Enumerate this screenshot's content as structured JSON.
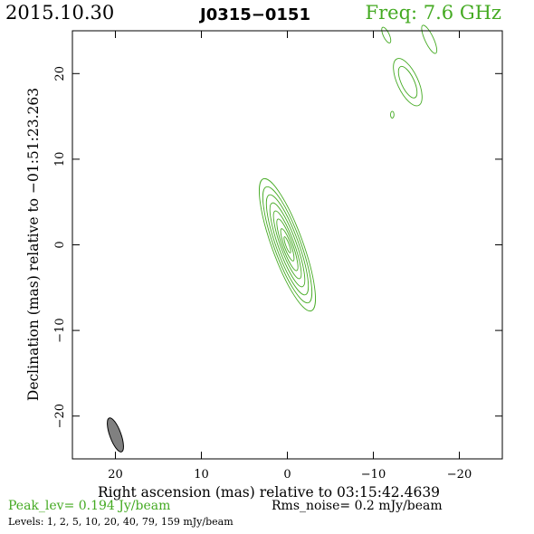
{
  "header": {
    "date": "2015.10.30",
    "source": "J0315−0151",
    "frequency": "Freq: 7.6 GHz"
  },
  "colors": {
    "contour": "#44aa22",
    "beam_fill": "#808080",
    "axes": "#000000"
  },
  "chart_data": {
    "type": "contour",
    "xlabel": "Right ascension (mas) relative to 03:15:42.4639",
    "ylabel": "Declination (mas) relative to −01:51:23.263",
    "xlim": [
      25,
      -25
    ],
    "ylim": [
      -25,
      25
    ],
    "x_ticks": [
      20,
      10,
      0,
      -10,
      -20
    ],
    "x_tick_labels": [
      "20",
      "10",
      "0",
      "−10",
      "−20"
    ],
    "y_ticks": [
      20,
      10,
      0,
      -10,
      -20
    ],
    "y_tick_labels": [
      "20",
      "10",
      "0",
      "−10",
      "−20"
    ],
    "contour_levels_mJy_per_beam": [
      1,
      2,
      5,
      10,
      20,
      40,
      79,
      159
    ],
    "peak_level": "Peak_lev=  0.194 Jy/beam",
    "rms_noise": "Rms_noise=  0.2 mJy/beam",
    "levels_text": "Levels:  1,  2,  5,  10,  20,  40,  79, 159 mJy/beam",
    "components": [
      {
        "name": "core",
        "x": 0.0,
        "y": 0.0,
        "semi_major": [
          8.2,
          7.2,
          6.2,
          5.2,
          4.2,
          3.2,
          2.0,
          1.0
        ],
        "semi_minor": [
          1.8,
          1.55,
          1.3,
          1.05,
          0.8,
          0.6,
          0.4,
          0.2
        ],
        "pa_deg": -20
      },
      {
        "name": "blob-a",
        "x": -14.0,
        "y": 19.0,
        "semi_major": [
          3.0,
          2.0
        ],
        "semi_minor": [
          1.2,
          0.75
        ],
        "pa_deg": -25
      },
      {
        "name": "blob-b",
        "x": -16.5,
        "y": 24.0,
        "semi_major": [
          1.8
        ],
        "semi_minor": [
          0.5
        ],
        "pa_deg": -25
      },
      {
        "name": "blob-c",
        "x": -11.5,
        "y": 24.5,
        "semi_major": [
          1.0
        ],
        "semi_minor": [
          0.35
        ],
        "pa_deg": -25
      },
      {
        "name": "blob-d",
        "x": -12.2,
        "y": 15.2,
        "semi_major": [
          0.4
        ],
        "semi_minor": [
          0.2
        ],
        "pa_deg": 0
      }
    ],
    "beam": {
      "x": 20.0,
      "y": -22.2,
      "major_mas": 4.2,
      "minor_mas": 1.3,
      "pa_deg": -20
    }
  }
}
